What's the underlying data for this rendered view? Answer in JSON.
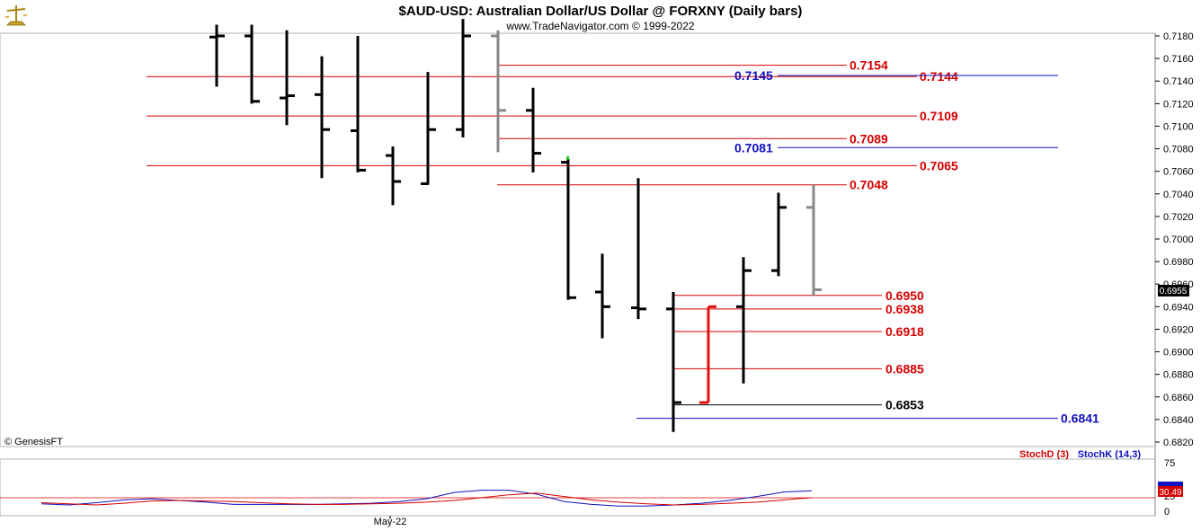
{
  "header": {
    "title": "$AUD-USD:  Australian Dollar/US Dollar @ FORXNY  (Daily bars)",
    "subtitle": "www.TradeNavigator.com © 1999-2022",
    "logo_icon": "brass-scale-icon"
  },
  "footer": {
    "credit": "© GenesisFT",
    "date_label": "May-22"
  },
  "price_readout": "0.6955",
  "indicator": {
    "stochd_label": "StochD (3)",
    "stochk_label": "StochK (14,3)",
    "axis_ticks": [
      "75",
      "25",
      "0"
    ],
    "value_label": "30.49",
    "stochd_color": "#d40000",
    "stochk_color": "#1010c0",
    "stochd_values": [
      23,
      21,
      19,
      22,
      26,
      27,
      26,
      25,
      23,
      21,
      20,
      20,
      21,
      22,
      24,
      27,
      32,
      37,
      40,
      34,
      28,
      24,
      21,
      19,
      20,
      22,
      24,
      28,
      32
    ],
    "stochk_values": [
      21,
      19,
      23,
      28,
      30,
      27,
      24,
      20,
      20,
      20,
      20,
      21,
      22,
      25,
      30,
      41,
      45,
      45,
      38,
      25,
      20,
      17,
      17,
      19,
      22,
      27,
      34,
      42,
      44
    ]
  },
  "chart_data": {
    "type": "ohlc",
    "title": "$AUD-USD:  Australian Dollar/US Dollar @ FORXNY  (Daily bars)",
    "ylim": [
      0.6815,
      0.7185
    ],
    "y_ticks": [
      "0.7180",
      "0.7160",
      "0.7140",
      "0.7120",
      "0.7100",
      "0.7080",
      "0.7060",
      "0.7040",
      "0.7020",
      "0.7000",
      "0.6980",
      "0.6960",
      "0.6940",
      "0.6920",
      "0.6900",
      "0.6880",
      "0.6860",
      "0.6840",
      "0.6820"
    ],
    "bars": [
      {
        "o": 0.7179,
        "h": 0.719,
        "l": 0.7135,
        "c": 0.718,
        "color": "black"
      },
      {
        "o": 0.718,
        "h": 0.719,
        "l": 0.712,
        "c": 0.7122,
        "color": "black"
      },
      {
        "o": 0.7125,
        "h": 0.7185,
        "l": 0.7101,
        "c": 0.7127,
        "color": "black"
      },
      {
        "o": 0.7128,
        "h": 0.7162,
        "l": 0.7054,
        "c": 0.7097,
        "color": "black"
      },
      {
        "o": 0.7096,
        "h": 0.718,
        "l": 0.7059,
        "c": 0.7061,
        "color": "black"
      },
      {
        "o": 0.7074,
        "h": 0.7082,
        "l": 0.703,
        "c": 0.7051,
        "color": "black"
      },
      {
        "o": 0.7049,
        "h": 0.7148,
        "l": 0.7048,
        "c": 0.7097,
        "color": "black"
      },
      {
        "o": 0.7097,
        "h": 0.7195,
        "l": 0.709,
        "c": 0.718,
        "color": "black"
      },
      {
        "o": 0.718,
        "h": 0.7185,
        "l": 0.7077,
        "c": 0.7114,
        "color": "grey"
      },
      {
        "o": 0.7114,
        "h": 0.7134,
        "l": 0.7059,
        "c": 0.7076,
        "color": "black"
      },
      {
        "o": 0.7068,
        "h": 0.7071,
        "l": 0.6946,
        "c": 0.6948,
        "color": "black"
      },
      {
        "o": 0.6953,
        "h": 0.6987,
        "l": 0.6912,
        "c": 0.694,
        "color": "black"
      },
      {
        "o": 0.6939,
        "h": 0.7054,
        "l": 0.6929,
        "c": 0.6938,
        "color": "black"
      },
      {
        "o": 0.6938,
        "h": 0.6953,
        "l": 0.6829,
        "c": 0.6855,
        "color": "black"
      },
      {
        "o": 0.6855,
        "h": 0.694,
        "l": 0.6855,
        "c": 0.694,
        "color": "red"
      },
      {
        "o": 0.694,
        "h": 0.6984,
        "l": 0.6872,
        "c": 0.6972,
        "color": "black"
      },
      {
        "o": 0.6972,
        "h": 0.7041,
        "l": 0.6967,
        "c": 0.7028,
        "color": "black"
      },
      {
        "o": 0.7028,
        "h": 0.7048,
        "l": 0.695,
        "c": 0.6955,
        "color": "grey"
      }
    ],
    "levels": [
      {
        "label": "0.7154",
        "value": 0.7154,
        "color": "#d40000",
        "kind": "red"
      },
      {
        "label": "0.7144",
        "value": 0.7144,
        "color": "#d40000",
        "kind": "red"
      },
      {
        "label": "0.7145",
        "value": 0.7145,
        "color": "#1010c0",
        "kind": "blue"
      },
      {
        "label": "0.7109",
        "value": 0.7109,
        "color": "#d40000",
        "kind": "red"
      },
      {
        "label": "0.7089",
        "value": 0.7089,
        "color": "#d40000",
        "kind": "red"
      },
      {
        "label": "0.7081",
        "value": 0.7081,
        "color": "#1010c0",
        "kind": "blue"
      },
      {
        "label": "0.7065",
        "value": 0.7065,
        "color": "#d40000",
        "kind": "red"
      },
      {
        "label": "0.7048",
        "value": 0.7048,
        "color": "#d40000",
        "kind": "red"
      },
      {
        "label": "0.6950",
        "value": 0.695,
        "color": "#d40000",
        "kind": "red"
      },
      {
        "label": "0.6938",
        "value": 0.6938,
        "color": "#d40000",
        "kind": "red"
      },
      {
        "label": "0.6918",
        "value": 0.6918,
        "color": "#d40000",
        "kind": "red"
      },
      {
        "label": "0.6885",
        "value": 0.6885,
        "color": "#d40000",
        "kind": "red"
      },
      {
        "label": "0.6853",
        "value": 0.6853,
        "color": "#000000",
        "kind": "black"
      },
      {
        "label": "0.6841",
        "value": 0.6841,
        "color": "#1010c0",
        "kind": "blue"
      }
    ]
  }
}
